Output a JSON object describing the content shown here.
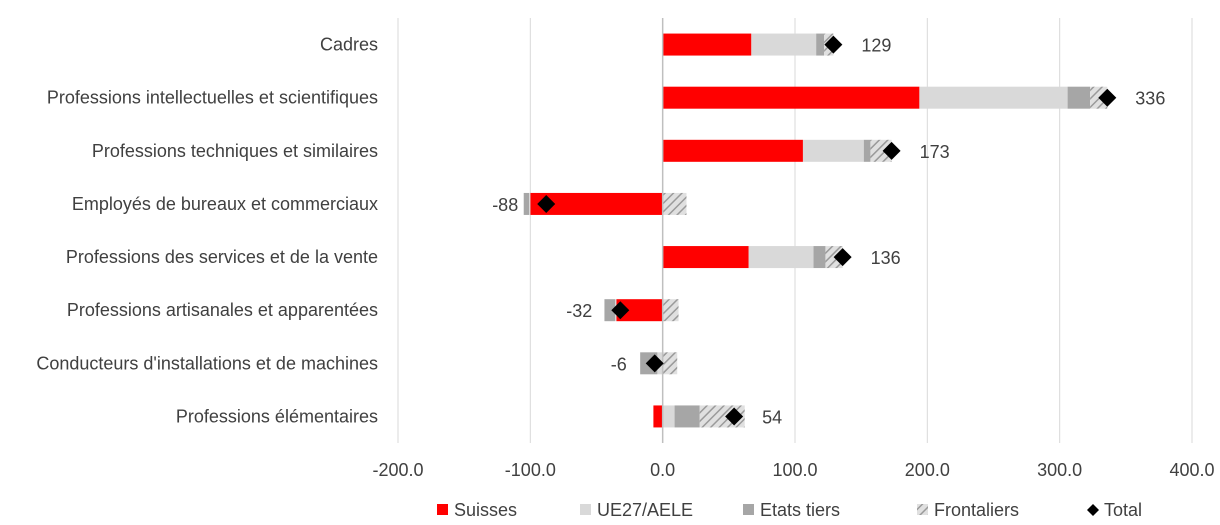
{
  "chart_data": {
    "type": "bar",
    "orientation": "horizontal",
    "stacked": true,
    "categories": [
      "Cadres",
      "Professions intellectuelles et scientifiques",
      "Professions techniques et similaires",
      "Employés de bureaux et commerciaux",
      "Professions des services et de la vente",
      "Professions artisanales et apparentées",
      "Conducteurs d'installations et de machines",
      "Professions élémentaires"
    ],
    "series": [
      {
        "name": "Suisses",
        "color": "#ff0000",
        "pattern": "solid",
        "values": [
          67,
          194,
          106,
          -100,
          65,
          -35,
          0,
          -7
        ]
      },
      {
        "name": "UE27/AELE",
        "color": "#d9d9d9",
        "pattern": "solid",
        "values": [
          49,
          112,
          46,
          -1,
          49,
          -1,
          -4,
          9
        ]
      },
      {
        "name": "Etats tiers",
        "color": "#a6a6a6",
        "pattern": "solid",
        "values": [
          6,
          17,
          5,
          -4,
          9,
          -8,
          -13,
          19
        ]
      },
      {
        "name": "Frontaliers",
        "color": "#a6a6a6",
        "pattern": "hatch",
        "values": [
          7,
          13,
          16,
          18,
          13,
          12,
          11,
          34
        ]
      }
    ],
    "total": {
      "name": "Total",
      "color": "#000000",
      "marker": "diamond",
      "values": [
        129,
        336,
        173,
        -88,
        136,
        -32,
        -6,
        54
      ]
    },
    "data_labels": [
      "129",
      "336",
      "173",
      "-88",
      "136",
      "-32",
      "-6",
      "54"
    ],
    "xlim": [
      -200,
      400
    ],
    "xticks": [
      -200,
      -100,
      0,
      100,
      200,
      300,
      400
    ],
    "xtick_labels": [
      "-200.0",
      "-100.0",
      "0.0",
      "100.0",
      "200.0",
      "300.0",
      "400.0"
    ],
    "grid": true,
    "legend_position": "bottom",
    "title": "",
    "xlabel": "",
    "ylabel": ""
  }
}
